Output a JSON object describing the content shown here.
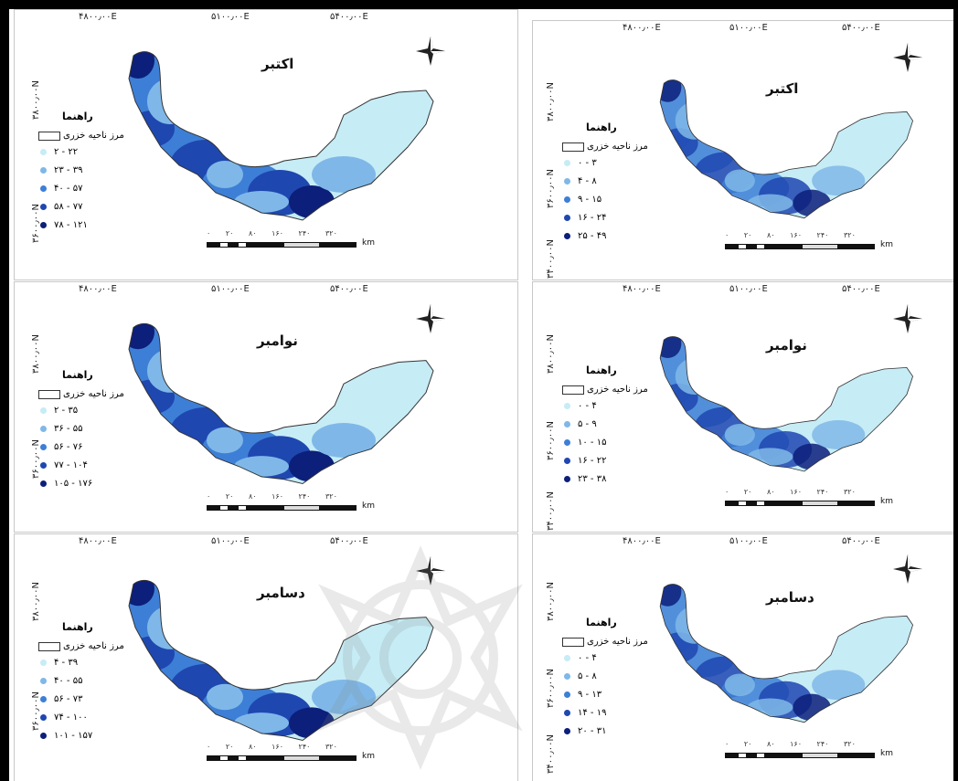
{
  "panels": [
    {
      "month": "اکتبر",
      "legend_title": "راهنما",
      "boundary_label": "مرز ناحیه خزری",
      "coords_top": [
        "۴۸۰۰٫۰۰E",
        "۵۱۰۰٫۰۰E",
        "۵۴۰۰٫۰۰E"
      ],
      "coords_left": [
        "۳۸۰۰٫۰۰N",
        "۳۶۰۰٫۰۰N"
      ],
      "classes": [
        "۲ - ۲۲",
        "۲۳ - ۳۹",
        "۴۰ - ۵۷",
        "۵۸ - ۷۷",
        "۷۸ - ۱۲۱"
      ],
      "scale_ticks": "۰ ۲۰ ۸۰ ۱۶۰ ۲۴۰ ۳۲۰",
      "scale_unit": "km"
    },
    {
      "month": "اکتبر",
      "legend_title": "راهنما",
      "boundary_label": "مرز ناحیه خزری",
      "coords_top": [
        "۴۸۰۰٫۰۰E",
        "۵۱۰۰٫۰۰E",
        "۵۴۰۰٫۰۰E"
      ],
      "coords_left": [
        "۳۸۰۰٫۰۰N",
        "۳۶۰۰٫۰۰N",
        "۳۴۰۰٫۰۰N"
      ],
      "classes": [
        "۰ - ۳",
        "۴ - ۸",
        "۹ - ۱۵",
        "۱۶ - ۲۴",
        "۲۵ - ۴۹"
      ],
      "scale_ticks": "۰ ۲۰ ۸۰ ۱۶۰ ۲۴۰ ۳۲۰",
      "scale_unit": "km"
    },
    {
      "month": "نوامبر",
      "legend_title": "راهنما",
      "boundary_label": "مرز ناحیه خزری",
      "coords_top": [
        "۴۸۰۰٫۰۰E",
        "۵۱۰۰٫۰۰E",
        "۵۴۰۰٫۰۰E"
      ],
      "coords_left": [
        "۳۸۰۰٫۰۰N",
        "۳۶۰۰٫۰۰N"
      ],
      "classes": [
        "۲ - ۳۵",
        "۳۶ - ۵۵",
        "۵۶ - ۷۶",
        "۷۷ - ۱۰۴",
        "۱۰۵ - ۱۷۶"
      ],
      "scale_ticks": "۰ ۲۰ ۸۰ ۱۶۰ ۲۴۰ ۳۲۰",
      "scale_unit": "km"
    },
    {
      "month": "نوامبر",
      "legend_title": "راهنما",
      "boundary_label": "مرز ناحیه خزری",
      "coords_top": [
        "۴۸۰۰٫۰۰E",
        "۵۱۰۰٫۰۰E",
        "۵۴۰۰٫۰۰E"
      ],
      "coords_left": [
        "۳۸۰۰٫۰۰N",
        "۳۶۰۰٫۰۰N",
        "۳۴۰۰٫۰۰N"
      ],
      "classes": [
        "۰ - ۴",
        "۵ - ۹",
        "۱۰ - ۱۵",
        "۱۶ - ۲۲",
        "۲۳ - ۳۸"
      ],
      "scale_ticks": "۰ ۲۰ ۸۰ ۱۶۰ ۲۴۰ ۳۲۰",
      "scale_unit": "km"
    },
    {
      "month": "دسامبر",
      "legend_title": "راهنما",
      "boundary_label": "مرز ناحیه خزری",
      "coords_top": [
        "۴۸۰۰٫۰۰E",
        "۵۱۰۰٫۰۰E",
        "۵۴۰۰٫۰۰E"
      ],
      "coords_left": [
        "۳۸۰۰٫۰۰N",
        "۳۶۰۰٫۰۰N"
      ],
      "classes": [
        "۴ - ۳۹",
        "۴۰ - ۵۵",
        "۵۶ - ۷۳",
        "۷۴ - ۱۰۰",
        "۱۰۱ - ۱۵۷"
      ],
      "scale_ticks": "۰ ۲۰ ۸۰ ۱۶۰ ۲۴۰ ۳۲۰",
      "scale_unit": "km"
    },
    {
      "month": "دسامبر",
      "legend_title": "راهنما",
      "boundary_label": "مرز ناحیه خزری",
      "coords_top": [
        "۴۸۰۰٫۰۰E",
        "۵۱۰۰٫۰۰E",
        "۵۴۰۰٫۰۰E"
      ],
      "coords_left": [
        "۳۸۰۰٫۰۰N",
        "۳۶۰۰٫۰۰N",
        "۳۴۰۰٫۰۰N"
      ],
      "classes": [
        "۰ - ۴",
        "۵ - ۸",
        "۹ - ۱۳",
        "۱۴ - ۱۹",
        "۲۰ - ۳۱"
      ],
      "scale_ticks": "۰ ۲۰ ۸۰ ۱۶۰ ۲۴۰ ۳۲۰",
      "scale_unit": "km"
    }
  ],
  "colors": {
    "class_colors": [
      "#c6ecf6",
      "#7fb8e8",
      "#3d7fd6",
      "#1f47b0",
      "#0c1f7a"
    ],
    "boundary": "#333333"
  }
}
